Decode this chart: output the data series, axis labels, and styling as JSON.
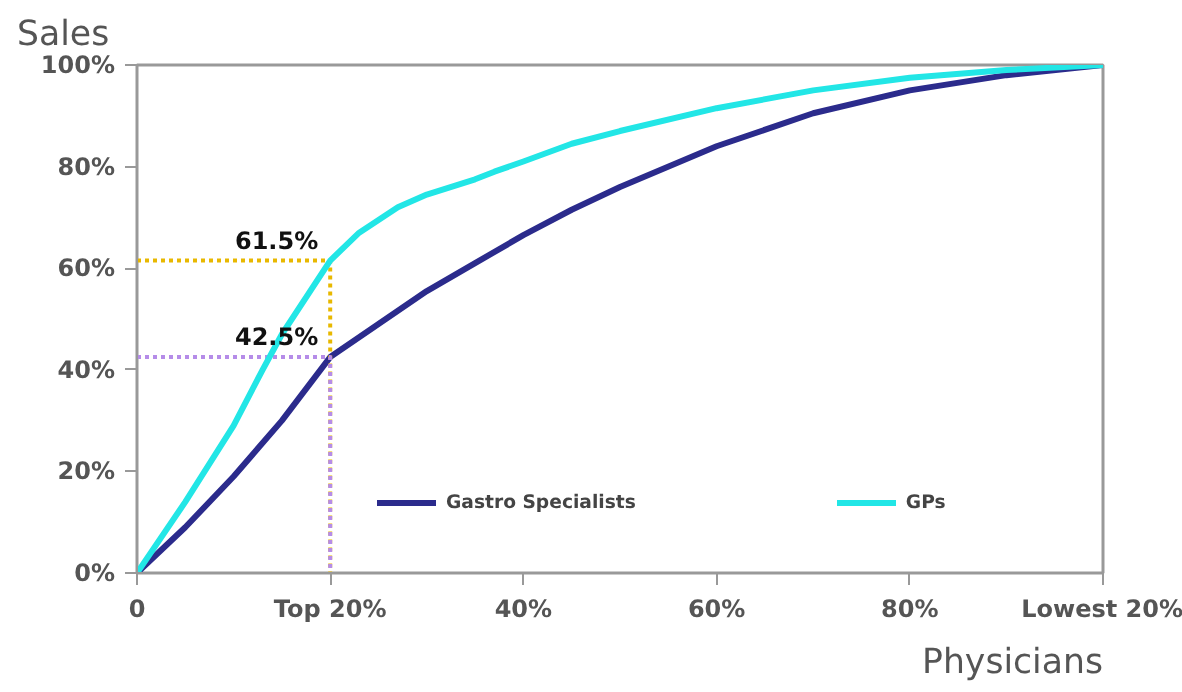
{
  "chart_data": {
    "type": "line",
    "ylabel": "Sales",
    "xlabel": "Physicians",
    "x": [
      0,
      5,
      10,
      15,
      20,
      25,
      30,
      35,
      40,
      45,
      50,
      60,
      70,
      80,
      90,
      100
    ],
    "series": [
      {
        "name": "Gastro Specialists",
        "color": "#2b2b8c",
        "values": [
          0,
          9,
          19,
          30,
          42.5,
          49,
          55.5,
          61,
          66.5,
          71.5,
          76,
          84,
          90.5,
          95,
          98,
          100
        ]
      },
      {
        "color": "#e8b800",
        "line_style": "dotted",
        "x": [
          0,
          20,
          20
        ],
        "values": [
          61.5,
          61.5,
          0
        ]
      },
      {
        "color": "#b58ce8",
        "line_style": "dotted",
        "x": [
          0,
          20,
          20
        ],
        "values": [
          42.5,
          42.5,
          0
        ]
      },
      {
        "name": "GPs",
        "color": "#22e6e6",
        "x": [
          0,
          5,
          10,
          13,
          15,
          20,
          23,
          27,
          30,
          35,
          37,
          40,
          45,
          50,
          60,
          70,
          80,
          90,
          100
        ],
        "values": [
          0,
          14,
          29,
          40,
          47,
          61.5,
          67,
          72,
          74.5,
          77.5,
          79,
          81,
          84.5,
          87,
          91.5,
          95,
          97.5,
          99,
          100
        ]
      }
    ],
    "annotations": [
      {
        "text": "61.5%",
        "x": 20,
        "y": 61.5
      },
      {
        "text": "42.5%",
        "x": 20,
        "y": 42.5
      }
    ],
    "xlim": [
      0,
      100
    ],
    "ylim": [
      0,
      100
    ],
    "xticks": [
      0,
      {
        "value": 20,
        "label": "Top 20%"
      },
      {
        "value": 40,
        "label": "40%"
      },
      {
        "value": 60,
        "label": "60%"
      },
      {
        "value": 80,
        "label": "80%"
      },
      {
        "value": 100,
        "label": "Lowest 20%"
      }
    ],
    "yticks": [
      {
        "value": 0,
        "label": "0%"
      },
      {
        "value": 20,
        "label": "20%"
      },
      {
        "value": 40,
        "label": "40%"
      },
      {
        "value": 60,
        "label": "60%"
      },
      {
        "value": 80,
        "label": "80%"
      },
      {
        "value": 100,
        "label": "100%"
      }
    ],
    "grid": false,
    "legend": "bottom",
    "marker": "none",
    "line_style": "solid"
  }
}
